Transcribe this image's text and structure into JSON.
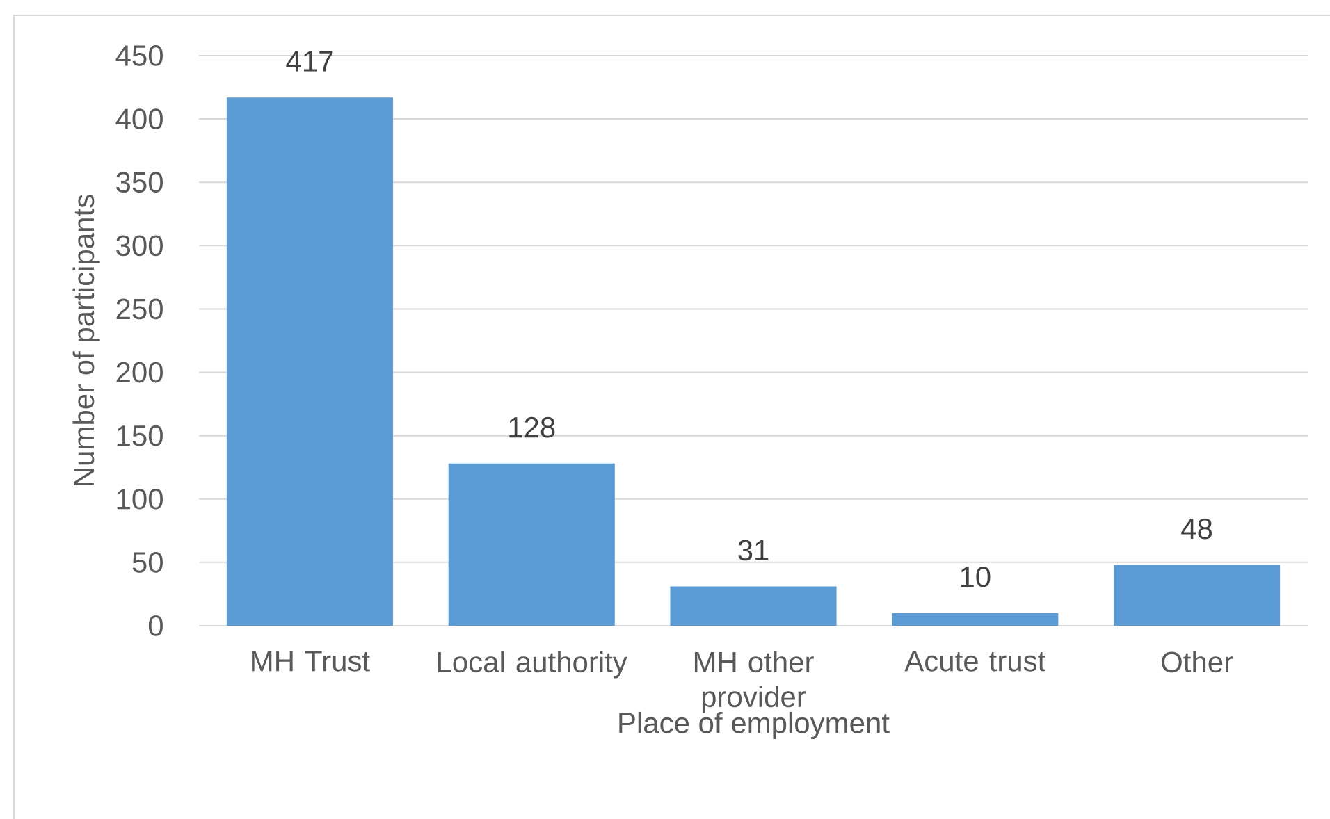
{
  "chart_data": {
    "type": "bar",
    "xlabel": "Place of employment",
    "ylabel": "Number of participants",
    "categories": [
      "MH Trust",
      "Local authority",
      "MH other provider",
      "Acute trust",
      "Other"
    ],
    "values": [
      417,
      128,
      31,
      10,
      48
    ],
    "color": "#5b9bd5",
    "ylim": [
      0,
      450
    ],
    "yticks": [
      0,
      50,
      100,
      150,
      200,
      250,
      300,
      350,
      400,
      450
    ],
    "grid": "y",
    "data_labels": true
  }
}
